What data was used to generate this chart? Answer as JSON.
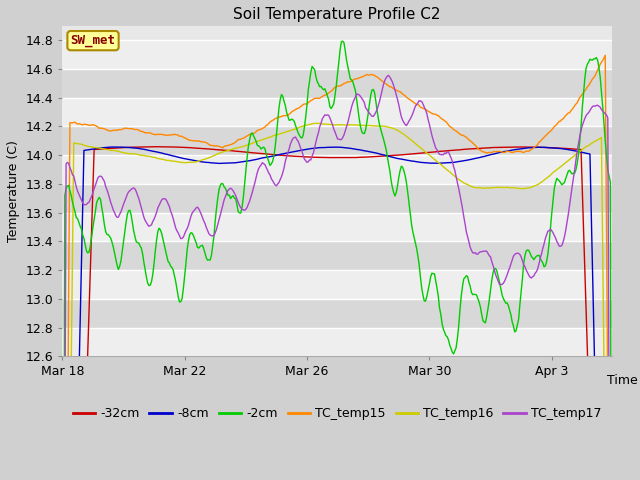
{
  "title": "Soil Temperature Profile C2",
  "xlabel": "Time",
  "ylabel": "Temperature (C)",
  "ylim": [
    12.6,
    14.9
  ],
  "yticks": [
    12.6,
    12.8,
    13.0,
    13.2,
    13.4,
    13.6,
    13.8,
    14.0,
    14.2,
    14.4,
    14.6,
    14.8
  ],
  "xtick_labels": [
    "Mar 18",
    "Mar 22",
    "Mar 26",
    "Mar 30",
    "Apr 3"
  ],
  "legend_labels": [
    "-32cm",
    "-8cm",
    "-2cm",
    "TC_temp15",
    "TC_temp16",
    "TC_temp17"
  ],
  "legend_colors": [
    "#cc0000",
    "#0000cc",
    "#00cc00",
    "#ff8800",
    "#cccc00",
    "#aa44cc"
  ],
  "sw_met_box_color": "#ffff99",
  "sw_met_text_color": "#880000",
  "sw_met_border_color": "#aa8800",
  "fig_bg_color": "#d0d0d0",
  "plot_bg_color": "#e8e8e8",
  "band_color_dark": "#d8d8d8",
  "band_color_light": "#eeeeee",
  "title_fontsize": 11,
  "axis_fontsize": 9,
  "tick_fontsize": 9,
  "legend_fontsize": 9,
  "line_width": 1.0,
  "n_points": 432,
  "n_days": 18
}
